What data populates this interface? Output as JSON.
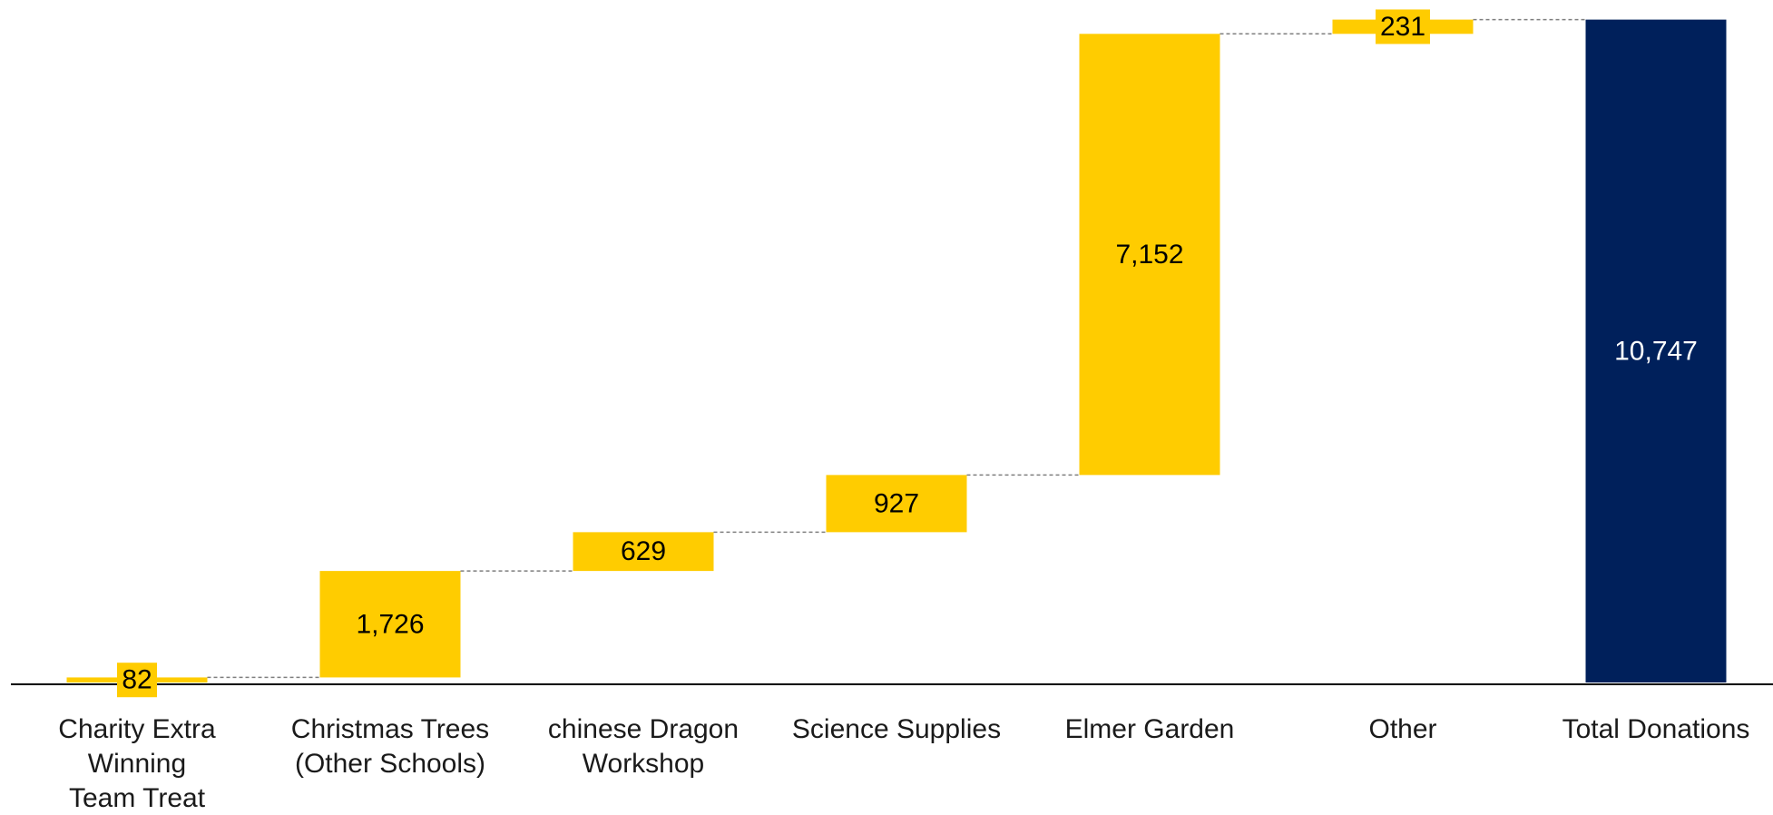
{
  "chart_data": {
    "type": "bar",
    "subtype": "waterfall",
    "title": "",
    "xlabel": "",
    "ylabel": "",
    "ylim": [
      0,
      10800
    ],
    "grid": false,
    "legend": "none",
    "categories": [
      [
        "Charity Extra",
        "Winning",
        "Team Treat"
      ],
      [
        "Christmas Trees",
        "(Other Schools)"
      ],
      [
        "chinese Dragon",
        "Workshop"
      ],
      [
        "Science Supplies"
      ],
      [
        "Elmer Garden"
      ],
      [
        "Other"
      ],
      [
        "Total Donations"
      ]
    ],
    "values": [
      82,
      1726,
      629,
      927,
      7152,
      231,
      10747
    ],
    "value_labels": [
      "82",
      "1,726",
      "629",
      "927",
      "7,152",
      "231",
      "10,747"
    ],
    "is_total": [
      false,
      false,
      false,
      false,
      false,
      false,
      true
    ],
    "colors": {
      "increase": "#FFCC00",
      "total": "#00205B",
      "connector": "#7f7f7f",
      "axis": "#000000"
    }
  }
}
